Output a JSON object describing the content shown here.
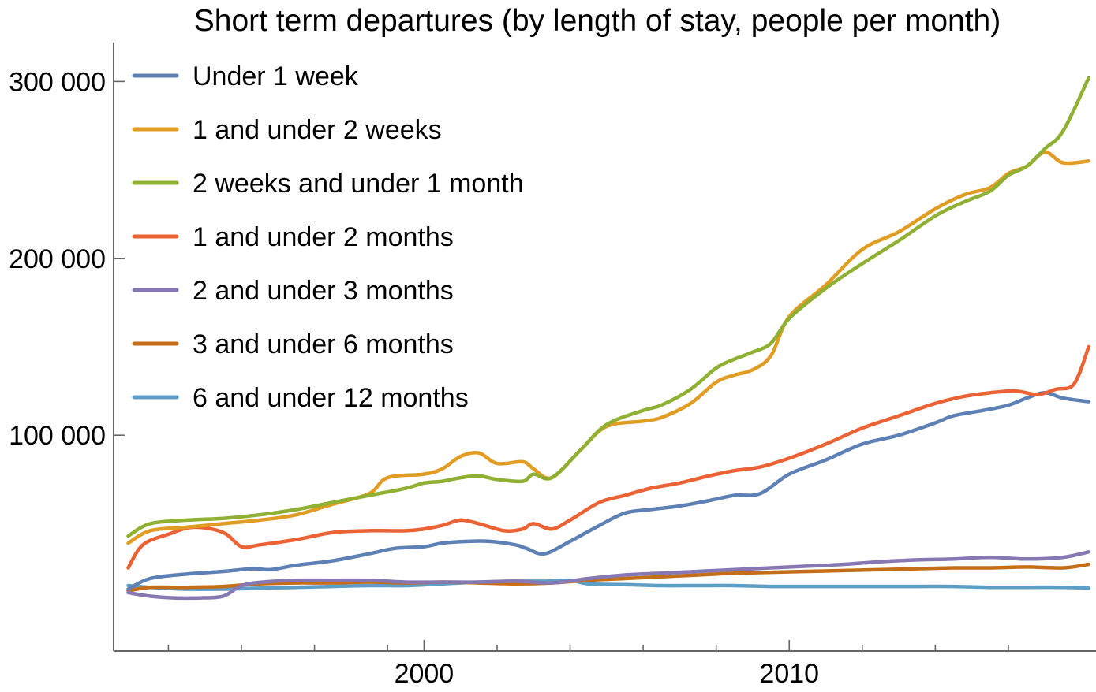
{
  "chart_data": {
    "type": "line",
    "title": "Short term departures (by length of stay, people per month)",
    "xlabel": "",
    "ylabel": "",
    "xlim": [
      1991.5,
      2018.4
    ],
    "ylim": [
      -22000,
      322000
    ],
    "x_ticks_major": [
      {
        "value": 2000,
        "label": "2000"
      },
      {
        "value": 2010,
        "label": "2010"
      }
    ],
    "x_ticks_minor": [
      1993,
      1995,
      1997,
      1999,
      2002,
      2004,
      2006,
      2008,
      2012,
      2014,
      2016
    ],
    "y_ticks": [
      {
        "value": 100000,
        "label": "100 000"
      },
      {
        "value": 200000,
        "label": "200 000"
      },
      {
        "value": 300000,
        "label": "300 000"
      }
    ],
    "legend_position": "top-left",
    "series": [
      {
        "name": "Under 1 week",
        "color": "#5E81B5",
        "x": [
          1991.9,
          1992.5,
          1993.5,
          1994.5,
          1995.3,
          1995.8,
          1996.5,
          1997.5,
          1998.5,
          1999.2,
          2000,
          2000.5,
          2001.2,
          2001.8,
          2002.5,
          2002.8,
          2003.3,
          2004,
          2004.8,
          2005.5,
          2006.2,
          2007,
          2007.8,
          2008.5,
          2009.2,
          2010,
          2011,
          2012,
          2013,
          2014,
          2014.5,
          2015.3,
          2016,
          2016.5,
          2017,
          2017.5,
          2018.2
        ],
        "y": [
          13000,
          19000,
          21500,
          23000,
          24500,
          24000,
          26500,
          29000,
          33000,
          36000,
          37000,
          39000,
          40000,
          40000,
          38000,
          36000,
          33000,
          40000,
          49000,
          56000,
          58000,
          60000,
          63000,
          66000,
          67000,
          78000,
          86000,
          95000,
          100000,
          107000,
          111000,
          114000,
          117000,
          121000,
          124000,
          121000,
          119000
        ]
      },
      {
        "name": "1 and under 2 weeks",
        "color": "#E19C24",
        "x": [
          1991.9,
          1992.5,
          1993.5,
          1994.5,
          1995.5,
          1996.5,
          1997.5,
          1998.5,
          1999,
          2000,
          2000.5,
          2001,
          2001.5,
          2002,
          2002.7,
          2003,
          2003.5,
          2004.3,
          2005,
          2006,
          2006.5,
          2007.3,
          2008,
          2008.5,
          2009,
          2009.5,
          2010,
          2011,
          2012,
          2013,
          2014,
          2014.8,
          2015.5,
          2016,
          2016.5,
          2017,
          2017.5,
          2018.2
        ],
        "y": [
          39000,
          46000,
          48000,
          50000,
          52000,
          55000,
          61000,
          67000,
          76000,
          78000,
          81000,
          88000,
          90000,
          84000,
          85000,
          81000,
          76000,
          92000,
          105000,
          108000,
          110000,
          118000,
          130000,
          134000,
          137000,
          145000,
          167000,
          185000,
          205000,
          215000,
          228000,
          236000,
          240000,
          248000,
          252000,
          260000,
          254000,
          255000
        ]
      },
      {
        "name": "2 weeks and under 1 month",
        "color": "#8FB032",
        "x": [
          1991.9,
          1992.5,
          1993.5,
          1994.5,
          1995.5,
          1996.5,
          1997.5,
          1998.5,
          1999.5,
          2000,
          2000.5,
          2001,
          2001.5,
          2002,
          2002.7,
          2003,
          2003.5,
          2004.3,
          2005,
          2006,
          2006.5,
          2007.3,
          2008,
          2008.5,
          2009,
          2009.5,
          2010,
          2011,
          2012,
          2013,
          2014,
          2014.8,
          2015.5,
          2016,
          2016.5,
          2017,
          2017.5,
          2018.2
        ],
        "y": [
          43000,
          50000,
          52000,
          53000,
          55000,
          58000,
          62000,
          66000,
          70000,
          73000,
          74000,
          76000,
          77000,
          75000,
          74000,
          78000,
          76000,
          92000,
          106000,
          114000,
          117000,
          126000,
          138000,
          143000,
          147000,
          152000,
          166000,
          183000,
          197000,
          210000,
          224000,
          232000,
          238000,
          247000,
          252000,
          262000,
          272000,
          302000
        ]
      },
      {
        "name": "1 and under 2 months",
        "color": "#EB6235",
        "x": [
          1991.9,
          1992.3,
          1993,
          1993.7,
          1994.5,
          1995,
          1995.5,
          1996.5,
          1997.5,
          1998.5,
          1999.5,
          2000,
          2000.5,
          2001,
          2001.5,
          2002.2,
          2002.7,
          2003,
          2003.5,
          2004,
          2004.8,
          2005.5,
          2006.2,
          2007,
          2007.8,
          2008.5,
          2009.2,
          2010,
          2011,
          2012,
          2013,
          2014,
          2014.8,
          2015.5,
          2016.2,
          2016.8,
          2017.3,
          2017.8,
          2018.2
        ],
        "y": [
          25000,
          38000,
          44000,
          48000,
          45000,
          37000,
          38000,
          41000,
          45000,
          46000,
          46000,
          47000,
          49000,
          52000,
          50000,
          46000,
          47000,
          50000,
          47000,
          52000,
          62000,
          66000,
          70000,
          73000,
          77000,
          80000,
          82000,
          87000,
          95000,
          104000,
          111000,
          118000,
          122000,
          124000,
          125000,
          123000,
          126000,
          129000,
          150000
        ]
      },
      {
        "name": "2 and under 3 months",
        "color": "#8778B3",
        "x": [
          1991.9,
          1992.5,
          1993.2,
          1993.8,
          1994.5,
          1995,
          1995.6,
          1996.5,
          1997.5,
          1998.5,
          1999.5,
          2000.5,
          2001.5,
          2002.5,
          2003.5,
          2004.5,
          2005.5,
          2006.5,
          2007.5,
          2008.5,
          2009.5,
          2010.5,
          2011.5,
          2012.5,
          2013.5,
          2014.5,
          2015.5,
          2016.5,
          2017.5,
          2018.2
        ],
        "y": [
          11000,
          9000,
          8000,
          8000,
          9000,
          15000,
          17000,
          18000,
          18000,
          18000,
          17000,
          17000,
          17000,
          17500,
          16500,
          19000,
          21000,
          22000,
          23000,
          24000,
          25000,
          26000,
          27000,
          28500,
          29500,
          30000,
          31000,
          30000,
          31000,
          34000
        ]
      },
      {
        "name": "3 and under 6 months",
        "color": "#C56E1A",
        "x": [
          1991.9,
          1992.5,
          1993.5,
          1994.5,
          1995.5,
          1996.5,
          1997.5,
          1998.5,
          1999.5,
          2000.5,
          2001.5,
          2002.5,
          2003.5,
          2004.5,
          2005.5,
          2006.5,
          2007.5,
          2008.5,
          2009.5,
          2010.5,
          2011.5,
          2012.5,
          2013.5,
          2014.5,
          2015.5,
          2016.5,
          2017.5,
          2018.2
        ],
        "y": [
          12000,
          14000,
          14000,
          14500,
          16000,
          16500,
          16500,
          17000,
          16500,
          17000,
          16500,
          16000,
          16500,
          18000,
          19000,
          20000,
          21000,
          22000,
          22500,
          23000,
          23500,
          24000,
          24500,
          25000,
          25000,
          25500,
          25000,
          27000
        ]
      },
      {
        "name": "6 and under 12 months",
        "color": "#5D9EC7",
        "x": [
          1991.9,
          1992.5,
          1993.5,
          1994.5,
          1995.5,
          1996.5,
          1997.5,
          1998.5,
          1999.5,
          2000.5,
          2001.5,
          2002.5,
          2003.3,
          2004,
          2004.5,
          2005.5,
          2006.5,
          2007.5,
          2008.5,
          2009.5,
          2010.5,
          2011.5,
          2012.5,
          2013.5,
          2014.5,
          2015.5,
          2016.5,
          2017.5,
          2018.2
        ],
        "y": [
          15000,
          14000,
          13000,
          13000,
          13500,
          14000,
          14500,
          15000,
          15000,
          16000,
          17000,
          17500,
          17500,
          18000,
          16000,
          15500,
          15000,
          15000,
          15000,
          14500,
          14500,
          14500,
          14500,
          14500,
          14500,
          14000,
          14000,
          14000,
          13500
        ]
      }
    ]
  }
}
